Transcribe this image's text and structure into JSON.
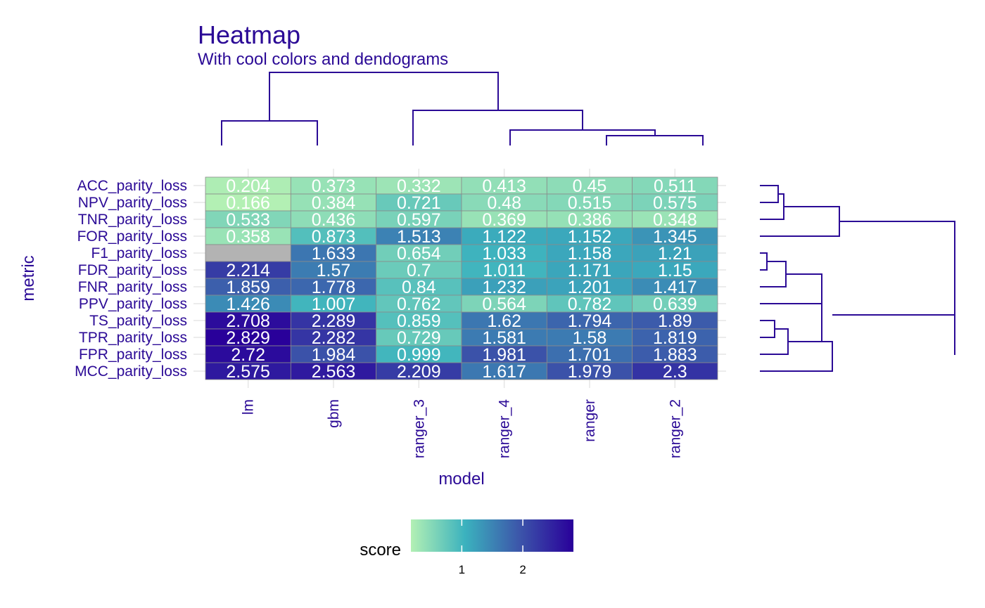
{
  "chart_data": {
    "type": "heatmap",
    "title": "Heatmap",
    "subtitle": "With cool colors and dendograms",
    "xlabel": "model",
    "ylabel": "metric",
    "columns": [
      "lm",
      "gbm",
      "ranger_3",
      "ranger_4",
      "ranger",
      "ranger_2"
    ],
    "rows": [
      "ACC_parity_loss",
      "NPV_parity_loss",
      "TNR_parity_loss",
      "FOR_parity_loss",
      "F1_parity_loss",
      "FDR_parity_loss",
      "FNR_parity_loss",
      "PPV_parity_loss",
      "TS_parity_loss",
      "TPR_parity_loss",
      "FPR_parity_loss",
      "MCC_parity_loss"
    ],
    "values": [
      [
        0.204,
        0.373,
        0.332,
        0.413,
        0.45,
        0.511
      ],
      [
        0.166,
        0.384,
        0.721,
        0.48,
        0.515,
        0.575
      ],
      [
        0.533,
        0.436,
        0.597,
        0.369,
        0.386,
        0.348
      ],
      [
        0.358,
        0.873,
        1.513,
        1.122,
        1.152,
        1.345
      ],
      [
        null,
        1.633,
        0.654,
        1.033,
        1.158,
        1.21
      ],
      [
        2.214,
        1.57,
        0.7,
        1.011,
        1.171,
        1.15
      ],
      [
        1.859,
        1.778,
        0.84,
        1.232,
        1.201,
        1.417
      ],
      [
        1.426,
        1.007,
        0.762,
        0.564,
        0.782,
        0.639
      ],
      [
        2.708,
        2.289,
        0.859,
        1.62,
        1.794,
        1.89
      ],
      [
        2.829,
        2.282,
        0.729,
        1.581,
        1.58,
        1.819
      ],
      [
        2.72,
        1.984,
        0.999,
        1.981,
        1.701,
        1.883
      ],
      [
        2.575,
        2.563,
        2.209,
        1.617,
        1.979,
        2.3
      ]
    ],
    "labels": [
      [
        "0.204",
        "0.373",
        "0.332",
        "0.413",
        "0.45",
        "0.511"
      ],
      [
        "0.166",
        "0.384",
        "0.721",
        "0.48",
        "0.515",
        "0.575"
      ],
      [
        "0.533",
        "0.436",
        "0.597",
        "0.369",
        "0.386",
        "0.348"
      ],
      [
        "0.358",
        "0.873",
        "1.513",
        "1.122",
        "1.152",
        "1.345"
      ],
      [
        "",
        "1.633",
        "0.654",
        "1.033",
        "1.158",
        "1.21"
      ],
      [
        "2.214",
        "1.57",
        "0.7",
        "1.011",
        "1.171",
        "1.15"
      ],
      [
        "1.859",
        "1.778",
        "0.84",
        "1.232",
        "1.201",
        "1.417"
      ],
      [
        "1.426",
        "1.007",
        "0.762",
        "0.564",
        "0.782",
        "0.639"
      ],
      [
        "2.708",
        "2.289",
        "0.859",
        "1.62",
        "1.794",
        "1.89"
      ],
      [
        "2.829",
        "2.282",
        "0.729",
        "1.581",
        "1.58",
        "1.819"
      ],
      [
        "2.72",
        "1.984",
        "0.999",
        "1.981",
        "1.701",
        "1.883"
      ],
      [
        "2.575",
        "2.563",
        "2.209",
        "1.617",
        "1.979",
        "2.3"
      ]
    ],
    "missing_color": "#b3b3b3",
    "color_scale": {
      "stops": [
        "#b3f0b4",
        "#3bb2be",
        "#3c56aa",
        "#29009a"
      ],
      "domain": [
        0.166,
        2.829
      ]
    },
    "legend": {
      "title": "score",
      "ticks": [
        1,
        2
      ],
      "tick_labels": [
        "1",
        "2"
      ],
      "placement": "bottom"
    },
    "dendrogram_columns": "top",
    "dendrogram_rows": "right",
    "colors": {
      "text": "#2b0a96",
      "grid": "#e6e6e6",
      "cell_border": "#8a8a8a"
    }
  }
}
